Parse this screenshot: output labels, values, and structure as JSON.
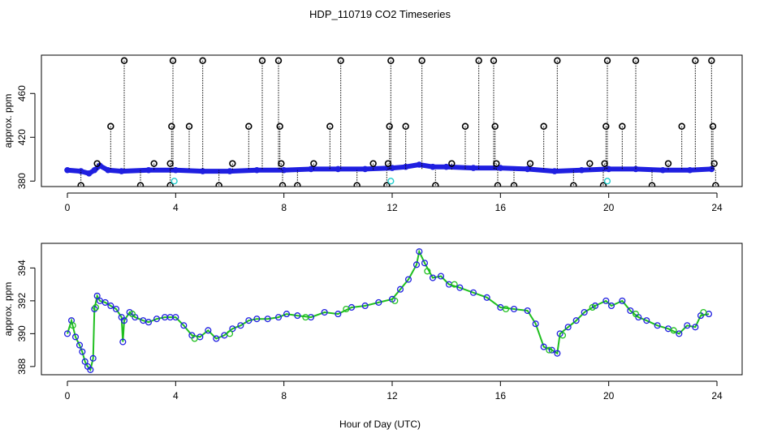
{
  "title": "HDP_110719  CO2 Timeseries",
  "xlabel": "Hour of Day (UTC)",
  "colors": {
    "axis": "#000000",
    "blue": "#1f1fe0",
    "green": "#1fbf1f",
    "cyan": "#22cccc"
  },
  "chart_data": [
    {
      "type": "scatter",
      "ylabel": "approx. ppm",
      "xlim": [
        0,
        24
      ],
      "ylim": [
        375,
        495
      ],
      "x_ticks": [
        "0",
        "4",
        "8",
        "12",
        "16",
        "20",
        "24"
      ],
      "x_tick_values": [
        0,
        4,
        8,
        12,
        16,
        20,
        24
      ],
      "y_ticks": [
        "380",
        "420",
        "460"
      ],
      "y_tick_values": [
        380,
        420,
        460
      ],
      "series": [
        {
          "values": [
            [
              0.0,
              390
            ],
            [
              0.5,
              389
            ],
            [
              0.8,
              387
            ],
            [
              1.0,
              390
            ],
            [
              1.2,
              394
            ],
            [
              1.5,
              390
            ],
            [
              2.0,
              389
            ],
            [
              3.0,
              390
            ],
            [
              4.0,
              390
            ],
            [
              5.0,
              389
            ],
            [
              6.0,
              389
            ],
            [
              7.0,
              390
            ],
            [
              8.0,
              390
            ],
            [
              9.0,
              391
            ],
            [
              10.0,
              391
            ],
            [
              11.0,
              391
            ],
            [
              12.0,
              392
            ],
            [
              12.5,
              393
            ],
            [
              13.0,
              395
            ],
            [
              13.5,
              393
            ],
            [
              14.0,
              393
            ],
            [
              15.0,
              392
            ],
            [
              16.0,
              392
            ],
            [
              17.0,
              391
            ],
            [
              18.0,
              389
            ],
            [
              19.0,
              390
            ],
            [
              20.0,
              391
            ],
            [
              21.0,
              391
            ],
            [
              22.0,
              390
            ],
            [
              23.0,
              390
            ],
            [
              23.8,
              391
            ]
          ]
        },
        {
          "values": [
            [
              0.5,
              376
            ],
            [
              1.1,
              396
            ],
            [
              1.6,
              430
            ],
            [
              2.1,
              490
            ],
            [
              2.7,
              376
            ],
            [
              3.2,
              396
            ],
            [
              3.8,
              376
            ],
            [
              3.8,
              396
            ],
            [
              3.85,
              430
            ],
            [
              3.9,
              490
            ],
            [
              4.5,
              430
            ],
            [
              5.0,
              490
            ],
            [
              5.6,
              376
            ],
            [
              6.1,
              396
            ],
            [
              6.7,
              430
            ],
            [
              7.2,
              490
            ],
            [
              7.8,
              490
            ],
            [
              7.85,
              430
            ],
            [
              7.9,
              396
            ],
            [
              7.95,
              376
            ],
            [
              8.5,
              376
            ],
            [
              9.1,
              396
            ],
            [
              9.7,
              430
            ],
            [
              10.1,
              490
            ],
            [
              10.7,
              376
            ],
            [
              11.3,
              396
            ],
            [
              11.8,
              376
            ],
            [
              11.85,
              396
            ],
            [
              11.9,
              430
            ],
            [
              11.95,
              490
            ],
            [
              12.5,
              430
            ],
            [
              13.1,
              490
            ],
            [
              13.6,
              376
            ],
            [
              14.2,
              396
            ],
            [
              14.7,
              430
            ],
            [
              15.2,
              490
            ],
            [
              15.75,
              490
            ],
            [
              15.8,
              430
            ],
            [
              15.85,
              396
            ],
            [
              15.9,
              376
            ],
            [
              16.5,
              376
            ],
            [
              17.1,
              396
            ],
            [
              17.6,
              430
            ],
            [
              18.1,
              490
            ],
            [
              18.7,
              376
            ],
            [
              19.3,
              396
            ],
            [
              19.8,
              376
            ],
            [
              19.85,
              396
            ],
            [
              19.9,
              430
            ],
            [
              19.95,
              490
            ],
            [
              20.5,
              430
            ],
            [
              21.0,
              490
            ],
            [
              21.6,
              376
            ],
            [
              22.2,
              396
            ],
            [
              22.7,
              430
            ],
            [
              23.2,
              490
            ],
            [
              23.8,
              490
            ],
            [
              23.85,
              430
            ],
            [
              23.9,
              396
            ],
            [
              23.95,
              376
            ]
          ]
        },
        {
          "values": [
            [
              3.95,
              380
            ],
            [
              11.95,
              380
            ],
            [
              19.95,
              380
            ]
          ]
        }
      ]
    },
    {
      "type": "scatter",
      "ylabel": "approx. ppm",
      "xlim": [
        0,
        24
      ],
      "ylim": [
        387.5,
        395.5
      ],
      "x_ticks": [
        "0",
        "4",
        "8",
        "12",
        "16",
        "20",
        "24"
      ],
      "x_tick_values": [
        0,
        4,
        8,
        12,
        16,
        20,
        24
      ],
      "y_ticks": [
        "388",
        "390",
        "392",
        "394"
      ],
      "y_tick_values": [
        388,
        390,
        392,
        394
      ],
      "series": [
        {
          "values": [
            [
              0.0,
              390.0
            ],
            [
              0.15,
              390.8
            ],
            [
              0.3,
              389.8
            ],
            [
              0.45,
              389.3
            ],
            [
              0.55,
              388.9
            ],
            [
              0.65,
              388.3
            ],
            [
              0.75,
              388.0
            ],
            [
              0.85,
              387.8
            ],
            [
              0.95,
              388.5
            ],
            [
              1.0,
              391.5
            ],
            [
              1.1,
              392.3
            ],
            [
              1.2,
              392.0
            ],
            [
              1.4,
              391.9
            ],
            [
              1.6,
              391.7
            ],
            [
              1.8,
              391.5
            ],
            [
              2.0,
              391.0
            ],
            [
              2.05,
              389.5
            ],
            [
              2.1,
              390.8
            ],
            [
              2.3,
              391.3
            ],
            [
              2.5,
              391.0
            ],
            [
              2.8,
              390.8
            ],
            [
              3.0,
              390.7
            ],
            [
              3.3,
              390.9
            ],
            [
              3.6,
              391.0
            ],
            [
              3.8,
              391.0
            ],
            [
              4.0,
              391.0
            ],
            [
              4.3,
              390.5
            ],
            [
              4.6,
              389.9
            ],
            [
              4.9,
              389.8
            ],
            [
              5.2,
              390.2
            ],
            [
              5.5,
              389.7
            ],
            [
              5.8,
              389.9
            ],
            [
              6.1,
              390.3
            ],
            [
              6.4,
              390.5
            ],
            [
              6.7,
              390.8
            ],
            [
              7.0,
              390.9
            ],
            [
              7.4,
              390.9
            ],
            [
              7.8,
              391.0
            ],
            [
              8.1,
              391.2
            ],
            [
              8.5,
              391.1
            ],
            [
              9.0,
              391.0
            ],
            [
              9.5,
              391.3
            ],
            [
              10.0,
              391.2
            ],
            [
              10.5,
              391.6
            ],
            [
              11.0,
              391.7
            ],
            [
              11.5,
              391.9
            ],
            [
              12.0,
              392.1
            ],
            [
              12.3,
              392.7
            ],
            [
              12.6,
              393.3
            ],
            [
              12.9,
              394.2
            ],
            [
              13.0,
              395.0
            ],
            [
              13.2,
              394.3
            ],
            [
              13.5,
              393.4
            ],
            [
              13.8,
              393.5
            ],
            [
              14.1,
              393.0
            ],
            [
              14.5,
              392.8
            ],
            [
              15.0,
              392.5
            ],
            [
              15.5,
              392.2
            ],
            [
              16.0,
              391.6
            ],
            [
              16.5,
              391.5
            ],
            [
              17.0,
              391.4
            ],
            [
              17.3,
              390.6
            ],
            [
              17.6,
              389.2
            ],
            [
              17.9,
              389.0
            ],
            [
              18.1,
              388.8
            ],
            [
              18.2,
              390.0
            ],
            [
              18.5,
              390.4
            ],
            [
              18.8,
              390.8
            ],
            [
              19.1,
              391.3
            ],
            [
              19.5,
              391.7
            ],
            [
              19.9,
              392.0
            ],
            [
              20.1,
              391.7
            ],
            [
              20.5,
              392.0
            ],
            [
              20.8,
              391.4
            ],
            [
              21.1,
              391.0
            ],
            [
              21.4,
              390.8
            ],
            [
              21.8,
              390.5
            ],
            [
              22.2,
              390.3
            ],
            [
              22.6,
              390.0
            ],
            [
              22.9,
              390.5
            ],
            [
              23.2,
              390.4
            ],
            [
              23.4,
              391.1
            ],
            [
              23.7,
              391.2
            ]
          ]
        },
        {
          "values": [
            [
              0.2,
              390.5
            ],
            [
              1.05,
              391.6
            ],
            [
              2.4,
              391.2
            ],
            [
              4.7,
              389.7
            ],
            [
              6.0,
              390.0
            ],
            [
              8.8,
              391.0
            ],
            [
              10.3,
              391.5
            ],
            [
              12.1,
              392.0
            ],
            [
              13.3,
              393.8
            ],
            [
              14.3,
              393.0
            ],
            [
              16.2,
              391.5
            ],
            [
              17.8,
              389.0
            ],
            [
              18.3,
              389.9
            ],
            [
              19.4,
              391.6
            ],
            [
              21.0,
              391.2
            ],
            [
              22.4,
              390.2
            ],
            [
              23.5,
              391.3
            ]
          ]
        }
      ]
    }
  ]
}
